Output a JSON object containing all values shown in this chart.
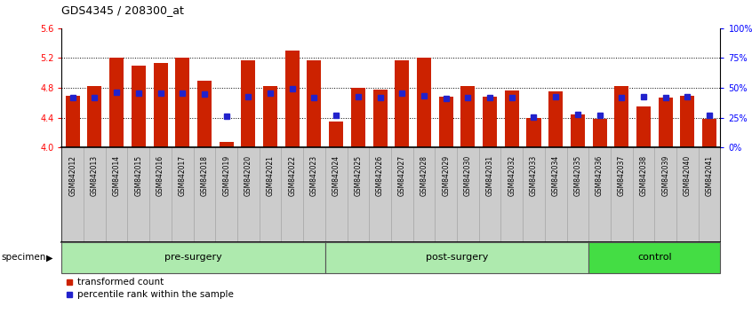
{
  "title": "GDS4345 / 208300_at",
  "samples": [
    "GSM842012",
    "GSM842013",
    "GSM842014",
    "GSM842015",
    "GSM842016",
    "GSM842017",
    "GSM842018",
    "GSM842019",
    "GSM842020",
    "GSM842021",
    "GSM842022",
    "GSM842023",
    "GSM842024",
    "GSM842025",
    "GSM842026",
    "GSM842027",
    "GSM842028",
    "GSM842029",
    "GSM842030",
    "GSM842031",
    "GSM842032",
    "GSM842033",
    "GSM842034",
    "GSM842035",
    "GSM842036",
    "GSM842037",
    "GSM842038",
    "GSM842039",
    "GSM842040",
    "GSM842041"
  ],
  "red_values": [
    4.7,
    4.82,
    5.2,
    5.1,
    5.13,
    5.2,
    4.9,
    4.07,
    5.17,
    4.83,
    5.3,
    5.17,
    4.35,
    4.8,
    4.78,
    5.17,
    5.21,
    4.68,
    4.82,
    4.68,
    4.76,
    4.4,
    4.75,
    4.44,
    4.39,
    4.82,
    4.55,
    4.67,
    4.7,
    4.38
  ],
  "blue_values": [
    4.675,
    4.675,
    4.745,
    4.725,
    4.725,
    4.735,
    4.72,
    4.42,
    4.68,
    4.725,
    4.785,
    4.675,
    4.43,
    4.68,
    4.675,
    4.73,
    4.695,
    4.655,
    4.675,
    4.675,
    4.675,
    4.41,
    4.685,
    4.44,
    4.435,
    4.67,
    4.68,
    4.675,
    4.685,
    4.435
  ],
  "groups": [
    {
      "label": "pre-surgery",
      "start": 0,
      "end": 12,
      "color": "#AEEAAE"
    },
    {
      "label": "post-surgery",
      "start": 12,
      "end": 24,
      "color": "#AEEAAE"
    },
    {
      "label": "control",
      "start": 24,
      "end": 30,
      "color": "#44DD44"
    }
  ],
  "ymin": 4.0,
  "ymax": 5.6,
  "yticks": [
    4.0,
    4.4,
    4.8,
    5.2,
    5.6
  ],
  "right_yticks": [
    0,
    25,
    50,
    75,
    100
  ],
  "bar_color": "#CC2200",
  "blue_color": "#2222CC",
  "grid_lines": [
    4.4,
    4.8,
    5.2
  ],
  "bar_width": 0.65,
  "tick_bg_color": "#CCCCCC",
  "specimen_label": "specimen",
  "legend_items": [
    "transformed count",
    "percentile rank within the sample"
  ]
}
